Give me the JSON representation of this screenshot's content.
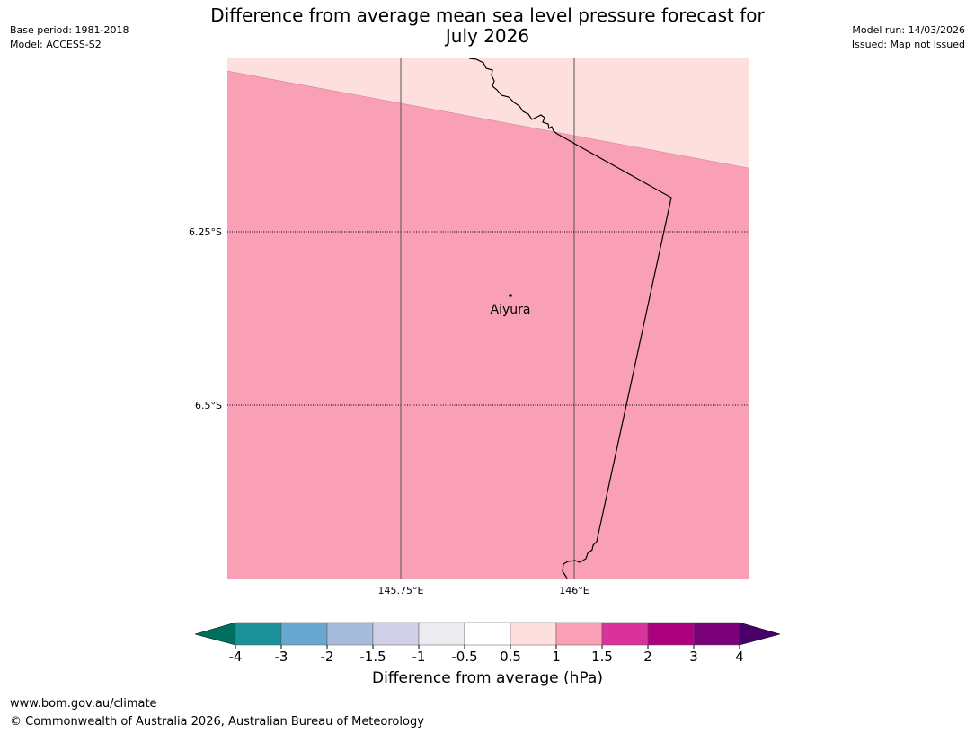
{
  "header": {
    "title_line1": "Difference from average mean sea level pressure forecast for",
    "title_line2": "July 2026",
    "base_period": "Base period: 1981-2018",
    "model": "Model: ACCESS-S2",
    "model_run": "Model run: 14/03/2026",
    "issued": "Issued: Map not issued"
  },
  "map": {
    "lat_labels": [
      "6.25°S",
      "6.5°S"
    ],
    "lon_labels": [
      "145.75°E",
      "146°E"
    ],
    "place": {
      "name": "Aiyura"
    },
    "category_colors": {
      "0.5_to_1": "#fde0dd",
      "1_to_1.5": "#f99fb6"
    }
  },
  "legend": {
    "label": "Difference from average (hPa)",
    "ticks": [
      "-4",
      "-3",
      "-2",
      "-1.5",
      "-1",
      "-0.5",
      "0.5",
      "1",
      "1.5",
      "2",
      "3",
      "4"
    ],
    "under_color": "#00705e",
    "over_color": "#4a006a",
    "colors": [
      "#1b9199",
      "#68a8d0",
      "#a6bbdb",
      "#d0d0e6",
      "#ecebf0",
      "#ffffff",
      "#fde0dd",
      "#f99fb6",
      "#d93399",
      "#ac017e",
      "#7a0177"
    ]
  },
  "footer": {
    "url": "www.bom.gov.au/climate",
    "copyright": "© Commonwealth of Australia 2026, Australian Bureau of Meteorology"
  }
}
